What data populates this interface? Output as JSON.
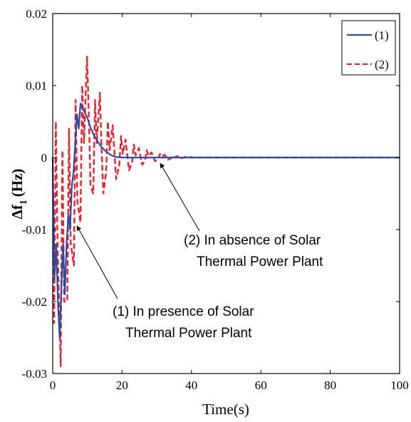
{
  "chart_data": {
    "type": "line",
    "title": "",
    "xlabel": "Time(s)",
    "ylabel": "Δf₁ (Hz)",
    "ylabel_main": "Δf",
    "ylabel_sub": "1",
    "ylabel_unit": "(Hz)",
    "xlim": [
      0,
      100
    ],
    "ylim": [
      -0.03,
      0.02
    ],
    "xticks": [
      0,
      20,
      40,
      60,
      80,
      100
    ],
    "xtick_labels": [
      "0",
      "20",
      "40",
      "60",
      "80",
      "100"
    ],
    "yticks": [
      -0.03,
      -0.02,
      -0.01,
      0,
      0.01,
      0.02
    ],
    "ytick_labels": [
      "-0.03",
      "-0.02",
      "-0.01",
      "0",
      "0.01",
      "0.02"
    ],
    "grid": false,
    "legend_position": "top-right",
    "series": [
      {
        "name": "(1)",
        "color": "#2a4ba8",
        "style": "solid",
        "x": [
          0,
          0.5,
          1,
          1.5,
          2,
          2.5,
          3,
          3.5,
          4,
          4.5,
          5,
          5.5,
          6,
          6.5,
          7,
          7.5,
          8,
          9,
          10,
          11,
          12,
          13,
          14,
          15,
          16,
          17,
          18,
          20,
          25,
          30,
          40,
          100
        ],
        "y": [
          0,
          -0.017,
          -0.012,
          -0.02,
          -0.025,
          -0.018,
          -0.012,
          -0.019,
          -0.012,
          -0.008,
          -0.01,
          -0.004,
          -0.002,
          0.002,
          0.006,
          0.004,
          0.0075,
          0.0065,
          0.0055,
          0.004,
          0.003,
          0.0022,
          0.0015,
          0.001,
          0.0006,
          0.0003,
          0.0001,
          0,
          0,
          0,
          0,
          0
        ]
      },
      {
        "name": "(2)",
        "color": "#e8212b",
        "style": "dashed",
        "x": [
          0,
          0.4,
          0.9,
          1.4,
          2.3,
          2.8,
          3.3,
          4.2,
          4.7,
          5.2,
          6.1,
          6.6,
          7.1,
          8,
          8.5,
          9,
          9.9,
          10.4,
          10.9,
          11.7,
          12.2,
          12.7,
          13.6,
          14.1,
          14.6,
          15.4,
          15.9,
          16.4,
          17.3,
          17.8,
          18.3,
          19.2,
          19.7,
          20.2,
          21,
          21.5,
          22,
          22.9,
          23.4,
          23.9,
          24.8,
          25.3,
          25.8,
          26.6,
          27.1,
          27.6,
          28.5,
          29,
          29.5,
          30.4,
          30.9,
          31.4,
          32.2,
          32.7,
          33.2,
          34.1,
          34.6,
          35.1,
          36,
          36.5,
          37,
          37.8,
          38.3,
          38.8,
          39.7,
          40.2,
          40.7,
          42,
          44,
          46,
          100
        ],
        "y": [
          0,
          -0.023,
          0.005,
          -0.012,
          -0.029,
          0.001,
          -0.02,
          -0.02,
          0.004,
          -0.012,
          -0.015,
          0.008,
          -0.006,
          -0.009,
          0.01,
          0.002,
          0.014,
          0.006,
          -0.004,
          -0.005,
          0.008,
          0.002,
          0.009,
          0.001,
          -0.005,
          -0.002,
          0.005,
          0.001,
          0.0045,
          0.0007,
          -0.003,
          -0.001,
          0.003,
          0.0005,
          0.0025,
          0.0003,
          -0.0018,
          -0.0006,
          0.0018,
          0.0003,
          0.0013,
          0.0002,
          -0.001,
          -0.0004,
          0.001,
          0.0002,
          0.0007,
          0.0001,
          -0.0005,
          -0.0002,
          0.0005,
          0.0001,
          0.0004,
          0.0001,
          -0.0003,
          -0.0001,
          0.0003,
          0,
          0.0002,
          0,
          -0.0001,
          0,
          0.0001,
          0,
          5e-05,
          0,
          0,
          0,
          0,
          0,
          0
        ]
      }
    ],
    "annotations": [
      {
        "lines": [
          "(2) In absence of Solar",
          "Thermal Power Plant"
        ],
        "target": [
          31,
          -0.0008
        ]
      },
      {
        "lines": [
          "(1) In presence of Solar",
          "Thermal Power Plant"
        ],
        "target": [
          7,
          -0.0095
        ]
      }
    ]
  }
}
